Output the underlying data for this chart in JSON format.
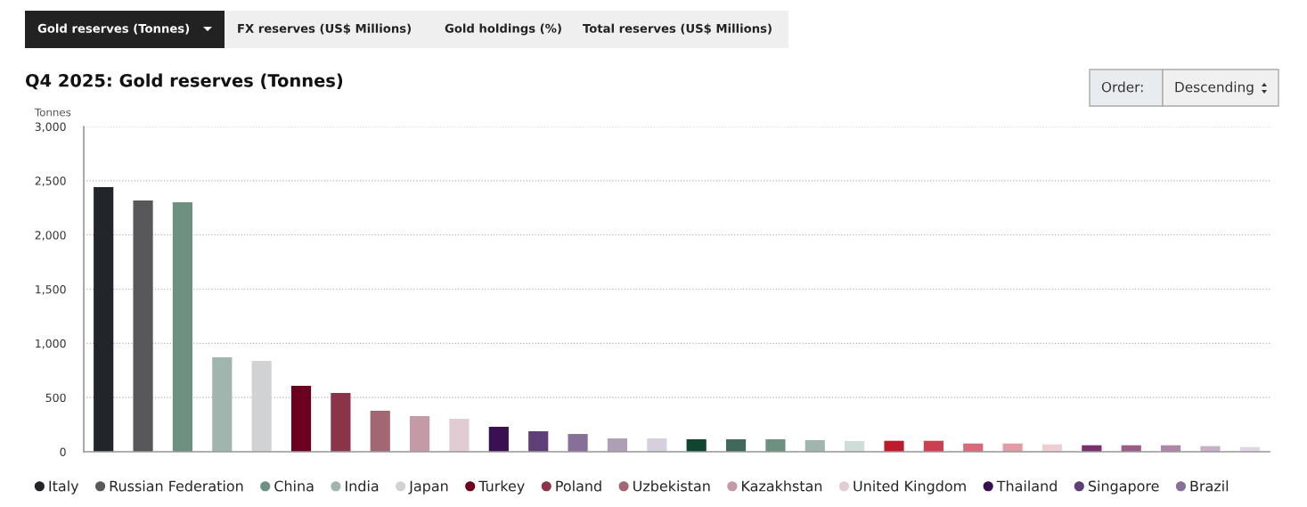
{
  "chart_data": {
    "type": "bar",
    "title": "Q4 2025: Gold reserves (Tonnes)",
    "ylabel": "Tonnes",
    "annotations": [
      "Gold reserves (Tonnes)",
      "FX reserves (US$ Millions)",
      "Gold holdings (%)",
      "Total reserves (US$ Millions)",
      "Order:",
      "Descending"
    ],
    "categories": [
      null,
      null,
      null,
      null,
      null,
      null,
      null,
      null,
      null,
      null,
      null,
      null,
      null,
      null,
      null,
      null,
      null,
      null,
      null,
      null,
      null,
      null,
      null,
      null,
      null,
      null,
      null,
      null,
      null,
      null
    ],
    "series": [
      {
        "name": "Italy",
        "color": "#222529",
        "values": [
          2441,
          null,
          null,
          null,
          null,
          null,
          null,
          null,
          null,
          null,
          null,
          null,
          null,
          null,
          null,
          null,
          null,
          null,
          null,
          null,
          null,
          null,
          null,
          null,
          null,
          null,
          null,
          null,
          null,
          null
        ]
      },
      {
        "name": "Russian Federation",
        "color": "#58585a",
        "values": [
          null,
          2318,
          null,
          null,
          null,
          null,
          null,
          null,
          null,
          null,
          null,
          null,
          null,
          null,
          null,
          null,
          null,
          null,
          null,
          null,
          null,
          null,
          null,
          null,
          null,
          null,
          null,
          null,
          null,
          null
        ]
      },
      {
        "name": "China",
        "color": "#6e9081",
        "values": [
          null,
          null,
          2301,
          null,
          null,
          null,
          null,
          null,
          null,
          null,
          null,
          null,
          null,
          null,
          null,
          null,
          null,
          null,
          null,
          null,
          null,
          null,
          null,
          null,
          null,
          null,
          null,
          null,
          null,
          null
        ]
      },
      {
        "name": "India",
        "color": "#a0b5ae",
        "values": [
          null,
          null,
          null,
          871,
          null,
          null,
          null,
          null,
          null,
          null,
          null,
          null,
          null,
          null,
          null,
          null,
          null,
          null,
          null,
          null,
          null,
          null,
          null,
          null,
          null,
          null,
          null,
          null,
          null,
          null
        ]
      },
      {
        "name": "Japan",
        "color": "#d1d2d4",
        "values": [
          null,
          null,
          null,
          null,
          838,
          null,
          null,
          null,
          null,
          null,
          null,
          null,
          null,
          null,
          null,
          null,
          null,
          null,
          null,
          null,
          null,
          null,
          null,
          null,
          null,
          null,
          null,
          null,
          null,
          null
        ]
      },
      {
        "name": "Turkey",
        "color": "#6b0020",
        "values": [
          null,
          null,
          null,
          null,
          null,
          608,
          null,
          null,
          null,
          null,
          null,
          null,
          null,
          null,
          null,
          null,
          null,
          null,
          null,
          null,
          null,
          null,
          null,
          null,
          null,
          null,
          null,
          null,
          null,
          null
        ]
      },
      {
        "name": "Poland",
        "color": "#8a344a",
        "values": [
          null,
          null,
          null,
          null,
          null,
          null,
          542,
          null,
          null,
          null,
          null,
          null,
          null,
          null,
          null,
          null,
          null,
          null,
          null,
          null,
          null,
          null,
          null,
          null,
          null,
          null,
          null,
          null,
          null,
          null
        ]
      },
      {
        "name": "Uzbekistan",
        "color": "#a36774",
        "values": [
          null,
          null,
          null,
          null,
          null,
          null,
          null,
          378,
          null,
          null,
          null,
          null,
          null,
          null,
          null,
          null,
          null,
          null,
          null,
          null,
          null,
          null,
          null,
          null,
          null,
          null,
          null,
          null,
          null,
          null
        ]
      },
      {
        "name": "Kazakhstan",
        "color": "#c39aa5",
        "values": [
          null,
          null,
          null,
          null,
          null,
          null,
          null,
          null,
          329,
          null,
          null,
          null,
          null,
          null,
          null,
          null,
          null,
          null,
          null,
          null,
          null,
          null,
          null,
          null,
          null,
          null,
          null,
          null,
          null,
          null
        ]
      },
      {
        "name": "United Kingdom",
        "color": "#e2ccd3",
        "values": [
          null,
          null,
          null,
          null,
          null,
          null,
          null,
          null,
          null,
          304,
          null,
          null,
          null,
          null,
          null,
          null,
          null,
          null,
          null,
          null,
          null,
          null,
          null,
          null,
          null,
          null,
          null,
          null,
          null,
          null
        ]
      },
      {
        "name": "Thailand",
        "color": "#3a1050",
        "values": [
          null,
          null,
          null,
          null,
          null,
          null,
          null,
          null,
          null,
          null,
          230,
          null,
          null,
          null,
          null,
          null,
          null,
          null,
          null,
          null,
          null,
          null,
          null,
          null,
          null,
          null,
          null,
          null,
          null,
          null
        ]
      },
      {
        "name": "Singapore",
        "color": "#5e3f78",
        "values": [
          null,
          null,
          null,
          null,
          null,
          null,
          null,
          null,
          null,
          null,
          null,
          189,
          null,
          null,
          null,
          null,
          null,
          null,
          null,
          null,
          null,
          null,
          null,
          null,
          null,
          null,
          null,
          null,
          null,
          null
        ]
      },
      {
        "name": "Brazil",
        "color": "#876f98",
        "values": [
          null,
          null,
          null,
          null,
          null,
          null,
          null,
          null,
          null,
          null,
          null,
          null,
          164,
          null,
          null,
          null,
          null,
          null,
          null,
          null,
          null,
          null,
          null,
          null,
          null,
          null,
          null,
          null,
          null,
          null
        ]
      },
      {
        "color": "#ae9fb5",
        "values": [
          null,
          null,
          null,
          null,
          null,
          null,
          null,
          null,
          null,
          null,
          null,
          null,
          null,
          123,
          null,
          null,
          null,
          null,
          null,
          null,
          null,
          null,
          null,
          null,
          null,
          null,
          null,
          null,
          null,
          null
        ]
      },
      {
        "color": "#d6cfdc",
        "values": [
          null,
          null,
          null,
          null,
          null,
          null,
          null,
          null,
          null,
          null,
          null,
          null,
          null,
          null,
          123,
          null,
          null,
          null,
          null,
          null,
          null,
          null,
          null,
          null,
          null,
          null,
          null,
          null,
          null,
          null
        ]
      },
      {
        "color": "#0e4630",
        "values": [
          null,
          null,
          null,
          null,
          null,
          null,
          null,
          null,
          null,
          null,
          null,
          null,
          null,
          null,
          null,
          115,
          null,
          null,
          null,
          null,
          null,
          null,
          null,
          null,
          null,
          null,
          null,
          null,
          null,
          null
        ]
      },
      {
        "color": "#40695a",
        "values": [
          null,
          null,
          null,
          null,
          null,
          null,
          null,
          null,
          null,
          null,
          null,
          null,
          null,
          null,
          null,
          null,
          115,
          null,
          null,
          null,
          null,
          null,
          null,
          null,
          null,
          null,
          null,
          null,
          null,
          null
        ]
      },
      {
        "color": "#6e9081",
        "values": [
          null,
          null,
          null,
          null,
          null,
          null,
          null,
          null,
          null,
          null,
          null,
          null,
          null,
          null,
          null,
          null,
          null,
          115,
          null,
          null,
          null,
          null,
          null,
          null,
          null,
          null,
          null,
          null,
          null,
          null
        ]
      },
      {
        "color": "#a0b5ae",
        "values": [
          null,
          null,
          null,
          null,
          null,
          null,
          null,
          null,
          null,
          null,
          null,
          null,
          null,
          null,
          null,
          null,
          null,
          null,
          107,
          null,
          null,
          null,
          null,
          null,
          null,
          null,
          null,
          null,
          null,
          null
        ]
      },
      {
        "color": "#d0dcd8",
        "values": [
          null,
          null,
          null,
          null,
          null,
          null,
          null,
          null,
          null,
          null,
          null,
          null,
          null,
          null,
          null,
          null,
          null,
          null,
          null,
          99,
          null,
          null,
          null,
          null,
          null,
          null,
          null,
          null,
          null,
          null
        ]
      },
      {
        "color": "#be1a2d",
        "values": [
          null,
          null,
          null,
          null,
          null,
          null,
          null,
          null,
          null,
          null,
          null,
          null,
          null,
          null,
          null,
          null,
          null,
          null,
          null,
          null,
          101,
          null,
          null,
          null,
          null,
          null,
          null,
          null,
          null,
          null
        ]
      },
      {
        "color": "#cc3f50",
        "values": [
          null,
          null,
          null,
          null,
          null,
          null,
          null,
          null,
          null,
          null,
          null,
          null,
          null,
          null,
          null,
          null,
          null,
          null,
          null,
          null,
          null,
          101,
          null,
          null,
          null,
          null,
          null,
          null,
          null,
          null
        ]
      },
      {
        "color": "#d86a7a",
        "values": [
          null,
          null,
          null,
          null,
          null,
          null,
          null,
          null,
          null,
          null,
          null,
          null,
          null,
          null,
          null,
          null,
          null,
          null,
          null,
          null,
          null,
          null,
          76,
          null,
          null,
          null,
          null,
          null,
          null,
          null
        ]
      },
      {
        "color": "#e39ba6",
        "values": [
          null,
          null,
          null,
          null,
          null,
          null,
          null,
          null,
          null,
          null,
          null,
          null,
          null,
          null,
          null,
          null,
          null,
          null,
          null,
          null,
          null,
          null,
          null,
          76,
          null,
          null,
          null,
          null,
          null,
          null
        ]
      },
      {
        "color": "#eecdd3",
        "values": [
          null,
          null,
          null,
          null,
          null,
          null,
          null,
          null,
          null,
          null,
          null,
          null,
          null,
          null,
          null,
          null,
          null,
          null,
          null,
          null,
          null,
          null,
          null,
          null,
          68,
          null,
          null,
          null,
          null,
          null
        ]
      },
      {
        "color": "#7a2f6e",
        "values": [
          null,
          null,
          null,
          null,
          null,
          null,
          null,
          null,
          null,
          null,
          null,
          null,
          null,
          null,
          null,
          null,
          null,
          null,
          null,
          null,
          null,
          null,
          null,
          null,
          null,
          60,
          null,
          null,
          null,
          null
        ]
      },
      {
        "color": "#9a5d85",
        "values": [
          null,
          null,
          null,
          null,
          null,
          null,
          null,
          null,
          null,
          null,
          null,
          null,
          null,
          null,
          null,
          null,
          null,
          null,
          null,
          null,
          null,
          null,
          null,
          null,
          null,
          null,
          60,
          null,
          null,
          null
        ]
      },
      {
        "color": "#b086a8",
        "values": [
          null,
          null,
          null,
          null,
          null,
          null,
          null,
          null,
          null,
          null,
          null,
          null,
          null,
          null,
          null,
          null,
          null,
          null,
          null,
          null,
          null,
          null,
          null,
          null,
          null,
          null,
          null,
          60,
          null,
          null
        ]
      },
      {
        "color": "#c8b0c8",
        "values": [
          null,
          null,
          null,
          null,
          null,
          null,
          null,
          null,
          null,
          null,
          null,
          null,
          null,
          null,
          null,
          null,
          null,
          null,
          null,
          null,
          null,
          null,
          null,
          null,
          null,
          null,
          null,
          null,
          52,
          null
        ]
      },
      {
        "color": "#e1d6e3",
        "values": [
          null,
          null,
          null,
          null,
          null,
          null,
          null,
          null,
          null,
          null,
          null,
          null,
          null,
          null,
          null,
          null,
          null,
          null,
          null,
          null,
          null,
          null,
          null,
          null,
          null,
          null,
          null,
          null,
          null,
          44
        ]
      }
    ],
    "ylim": [
      0,
      3000
    ],
    "yticks": [
      0,
      {
        "value": 500,
        "label": "500"
      },
      {
        "value": 1000,
        "label": "1,000"
      },
      {
        "value": 1500,
        "label": "1,500"
      },
      {
        "value": 2000,
        "label": "2,000"
      },
      {
        "value": 2500,
        "label": "2,500"
      },
      {
        "value": 3000,
        "label": "3,000"
      }
    ],
    "grid": "y",
    "legend": "bottom"
  }
}
